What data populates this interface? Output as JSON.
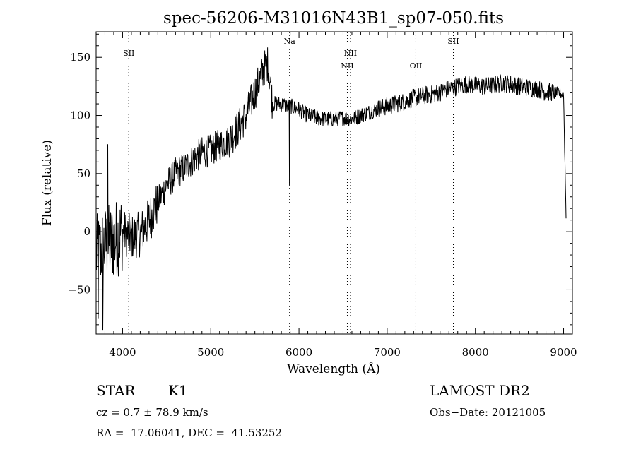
{
  "chart_data": {
    "type": "line",
    "title": "spec-56206-M31016N43B1_sp07-050.fits",
    "xlabel": "Wavelength (Å)",
    "ylabel": "Flux (relative)",
    "xlim": [
      3700,
      9100
    ],
    "ylim": [
      -88,
      172
    ],
    "x_ticks": [
      4000,
      5000,
      6000,
      7000,
      8000,
      9000
    ],
    "x_tick_labels": [
      "4000",
      "5000",
      "6000",
      "7000",
      "8000",
      "9000"
    ],
    "y_ticks": [
      -50,
      0,
      50,
      100,
      150
    ],
    "y_tick_labels": [
      "−50",
      "0",
      "50",
      "100",
      "150"
    ],
    "grid": false,
    "line_color": "#000000",
    "lines": [
      {
        "label": "SII",
        "wavelength": 4070,
        "label_row": 1
      },
      {
        "label": "Na",
        "wavelength": 5893,
        "label_row": 0
      },
      {
        "label": "NII",
        "wavelength": 6548,
        "label_row": 2
      },
      {
        "label": "NII",
        "wavelength": 6584,
        "label_row": 1
      },
      {
        "label": "OII",
        "wavelength": 7325,
        "label_row": 2
      },
      {
        "label": "SII",
        "wavelength": 7750,
        "label_row": 0
      }
    ],
    "continuum": {
      "x": [
        3700,
        3800,
        3900,
        4000,
        4100,
        4200,
        4300,
        4400,
        4500,
        4600,
        4700,
        4800,
        4900,
        5000,
        5100,
        5200,
        5300,
        5400,
        5500,
        5600,
        5650,
        5700,
        5800,
        5900,
        6000,
        6100,
        6200,
        6300,
        6400,
        6500,
        6600,
        6700,
        6800,
        6900,
        7000,
        7100,
        7200,
        7300,
        7400,
        7500,
        7600,
        7700,
        7800,
        7900,
        8000,
        8100,
        8200,
        8300,
        8400,
        8500,
        8600,
        8700,
        8800,
        8900,
        9000,
        9030
      ],
      "y": [
        -20,
        -12,
        -8,
        0,
        -5,
        -2,
        10,
        25,
        40,
        50,
        55,
        62,
        68,
        70,
        75,
        78,
        88,
        100,
        120,
        140,
        145,
        110,
        110,
        108,
        105,
        100,
        98,
        97,
        97,
        98,
        97,
        100,
        103,
        106,
        108,
        110,
        112,
        115,
        117,
        118,
        120,
        123,
        125,
        127,
        126,
        125,
        126,
        128,
        127,
        125,
        124,
        123,
        120,
        120,
        118,
        5
      ]
    },
    "features": [
      {
        "x": 5893,
        "y": 40
      },
      {
        "x": 3725,
        "y": -75
      },
      {
        "x": 3775,
        "y": -85
      },
      {
        "x": 3830,
        "y": 75
      }
    ]
  },
  "footer": {
    "object_class": "STAR",
    "subclass": "K1",
    "survey": "LAMOST DR2",
    "redshift": "cz = 0.7 ± 78.9 km/s",
    "obs_date": "Obs−Date: 20121005",
    "coords": "RA =  17.06041, DEC =  41.53252"
  }
}
